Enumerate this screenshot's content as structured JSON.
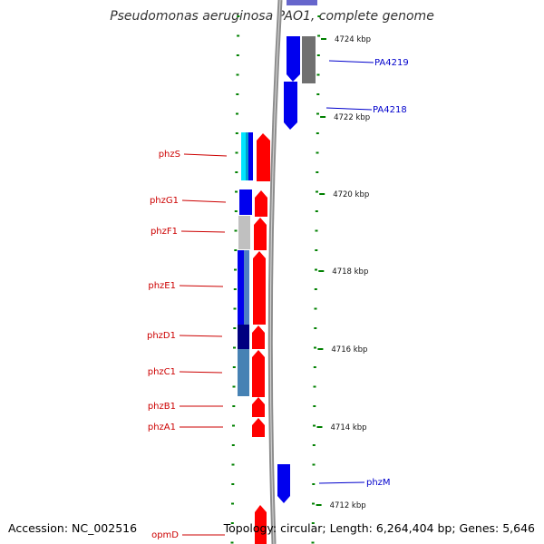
{
  "header": {
    "title": "Pseudomonas aeruginosa PAO1, complete genome"
  },
  "footer": {
    "accession": "Accession: NC_002516",
    "summary": "Topology: circular; Length: 6,264,404 bp; Genes: 5,646"
  },
  "colors": {
    "backbone": "#8c8c8c",
    "forward": "#ff0000",
    "reverse": "#0000ff",
    "tick": "#008000",
    "label_forward": "#cc0000",
    "label_reverse": "#0000cc"
  },
  "ticks": [
    {
      "label": "4724 kbp"
    },
    {
      "label": "4722 kbp"
    },
    {
      "label": "4720 kbp"
    },
    {
      "label": "4718 kbp"
    },
    {
      "label": "4716 kbp"
    },
    {
      "label": "4714 kbp"
    },
    {
      "label": "4712 kbp"
    }
  ],
  "gene_labels": [
    {
      "name": "PA4219",
      "side": "right"
    },
    {
      "name": "PA4218",
      "side": "right"
    },
    {
      "name": "phzS",
      "side": "left"
    },
    {
      "name": "phzG1",
      "side": "left"
    },
    {
      "name": "phzF1",
      "side": "left"
    },
    {
      "name": "phzE1",
      "side": "left"
    },
    {
      "name": "phzD1",
      "side": "left"
    },
    {
      "name": "phzC1",
      "side": "left"
    },
    {
      "name": "phzB1",
      "side": "left"
    },
    {
      "name": "phzA1",
      "side": "left"
    },
    {
      "name": "phzM",
      "side": "right"
    },
    {
      "name": "opmD",
      "side": "left"
    }
  ]
}
